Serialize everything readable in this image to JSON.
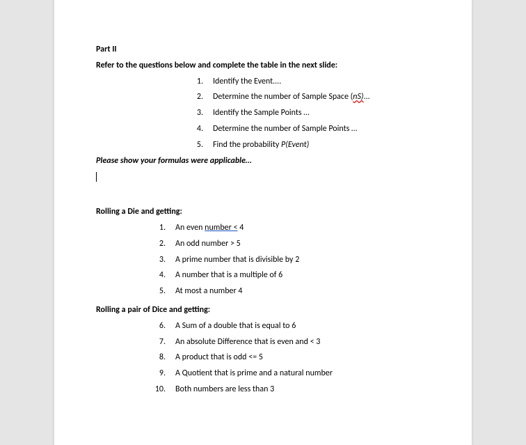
{
  "part_title": "Part II",
  "intro": "Refer to the questions below and complete the table in the next slide:",
  "steps": [
    {
      "num": "1.",
      "before": "Identify the Event....",
      "wavy": "",
      "after": ""
    },
    {
      "num": "2.",
      "before": "Determine the number of Sample Space (",
      "wavy": "nS)",
      "after": "..."
    },
    {
      "num": "3.",
      "before": "Identify the Sample Points …",
      "wavy": "",
      "after": ""
    },
    {
      "num": "4.",
      "before": "Determine the number of Sample Points …",
      "wavy": "",
      "after": ""
    },
    {
      "num": "5.",
      "before": "Find the probability ",
      "wavy": "",
      "after": "",
      "italic_tail": "P(Event)"
    }
  ],
  "note": "Please show your formulas were applicable…",
  "section1": "Rolling a Die and getting:",
  "q1": [
    {
      "num": "1.",
      "before": "An even ",
      "blue": "number  <",
      "after": " 4"
    },
    {
      "num": "2.",
      "text": "An odd number > 5"
    },
    {
      "num": "3.",
      "text": "A prime number that is divisible by 2"
    },
    {
      "num": "4.",
      "text": "A number that is a multiple of 6"
    },
    {
      "num": "5.",
      "text": "At most a number 4"
    }
  ],
  "section2": "Rolling a pair of Dice and getting:",
  "q2": [
    {
      "num": "6.",
      "text": "A Sum of a double that is equal to 6"
    },
    {
      "num": "7.",
      "text": " An absolute Difference that is even and < 3"
    },
    {
      "num": "8.",
      "text": " A product that is odd <= 5"
    },
    {
      "num": "9.",
      "text": " A Quotient that is prime and a natural number"
    },
    {
      "num": "10.",
      "text": " Both numbers are less than 3"
    }
  ]
}
